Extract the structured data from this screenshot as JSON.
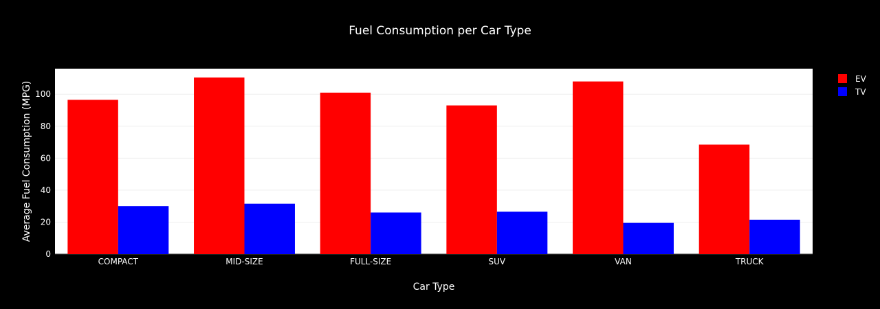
{
  "chart_data": {
    "type": "bar",
    "title": "Fuel Consumption per Car Type",
    "xlabel": "Car Type",
    "ylabel": "Average Fuel Consumption (MPG)",
    "categories": [
      "COMPACT",
      "MID-SIZE",
      "FULL-SIZE",
      "SUV",
      "VAN",
      "TRUCK"
    ],
    "series": [
      {
        "name": "EV",
        "color": "#ff0000",
        "values": [
          96.5,
          110.5,
          101,
          93,
          108,
          68.5
        ]
      },
      {
        "name": "TV",
        "color": "#0000ff",
        "values": [
          30,
          31.5,
          26,
          26.5,
          19.5,
          21.5
        ]
      }
    ],
    "ylim": [
      0,
      116
    ],
    "yticks": [
      0,
      20,
      40,
      60,
      80,
      100
    ],
    "grid": true,
    "legend": "top-right",
    "background": "#000000",
    "plot_background": "#ffffff",
    "text_color": "#ffffff",
    "grid_color": "#eeeeee"
  }
}
